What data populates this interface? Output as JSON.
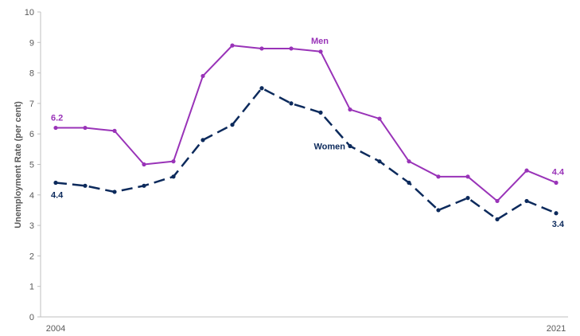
{
  "chart_data": {
    "type": "line",
    "ylabel": "Unemployment Rate (per cent)",
    "ylim": [
      0,
      10
    ],
    "y_ticks": [
      "0",
      "1",
      "2",
      "3",
      "4",
      "5",
      "6",
      "7",
      "8",
      "9",
      "10"
    ],
    "x": [
      2004,
      2005,
      2006,
      2007,
      2008,
      2009,
      2010,
      2011,
      2012,
      2013,
      2014,
      2015,
      2016,
      2017,
      2018,
      2019,
      2020,
      2021
    ],
    "x_tick_labels": [
      "2004",
      "2021"
    ],
    "grid": false,
    "series": [
      {
        "name": "Men",
        "color": "#9933b8",
        "style": "solid",
        "values": [
          6.2,
          6.2,
          6.1,
          5.0,
          5.1,
          7.9,
          8.9,
          8.8,
          8.8,
          8.7,
          6.8,
          6.5,
          5.1,
          4.6,
          4.6,
          3.8,
          4.8,
          4.4
        ],
        "start_label": "6.2",
        "end_label": "4.4"
      },
      {
        "name": "Women",
        "color": "#0c2a5c",
        "style": "dashed",
        "values": [
          4.4,
          4.3,
          4.1,
          4.3,
          4.6,
          5.8,
          6.3,
          7.5,
          7.0,
          6.7,
          5.6,
          5.1,
          4.4,
          3.5,
          3.9,
          3.2,
          3.8,
          3.4
        ],
        "start_label": "4.4",
        "end_label": "3.4"
      }
    ]
  }
}
